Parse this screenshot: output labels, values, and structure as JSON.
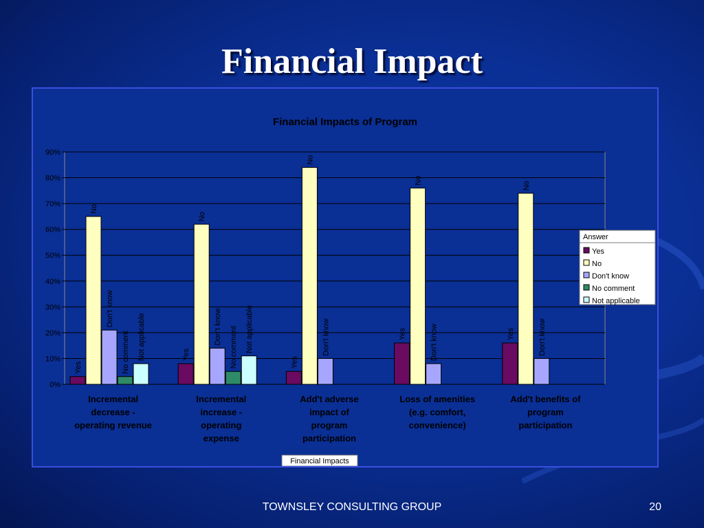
{
  "slide": {
    "title": "Financial Impact",
    "footer": "TOWNSLEY CONSULTING GROUP",
    "page_number": "20"
  },
  "colors": {
    "Yes": "#6a0a60",
    "No": "#ffffc0",
    "Don't know": "#a6a6ff",
    "No comment": "#2e8b67",
    "Not applicable": "#ccffff",
    "background": "#0a2f95",
    "axis_text": "#000000"
  },
  "chart_data": {
    "type": "bar",
    "title": "Financial Impacts of Program",
    "xlabel": "Financial Impacts",
    "ylabel": "",
    "ylim": [
      0,
      0.9
    ],
    "yticks": [
      "0%",
      "10%",
      "20%",
      "30%",
      "40%",
      "50%",
      "60%",
      "70%",
      "80%",
      "90%"
    ],
    "grid": true,
    "legend_title": "Answer",
    "legend_position": "right",
    "categories": [
      [
        "Incremental",
        "decrease -",
        "operating revenue"
      ],
      [
        "Incremental",
        "increase -",
        "operating",
        "expense"
      ],
      [
        "Add't adverse",
        "impact of",
        "program",
        "participation"
      ],
      [
        "Loss of amenities",
        "(e.g. comfort,",
        "convenience)"
      ],
      [
        "Add't benefits of",
        "program",
        "participation"
      ]
    ],
    "series": [
      {
        "name": "Yes",
        "values": [
          0.03,
          0.08,
          0.05,
          0.16,
          0.16
        ]
      },
      {
        "name": "No",
        "values": [
          0.65,
          0.62,
          0.84,
          0.76,
          0.74
        ]
      },
      {
        "name": "Don't know",
        "values": [
          0.21,
          0.14,
          0.1,
          0.08,
          0.1
        ]
      },
      {
        "name": "No comment",
        "values": [
          0.03,
          0.05,
          null,
          null,
          null
        ]
      },
      {
        "name": "Not applicable",
        "values": [
          0.08,
          0.11,
          null,
          null,
          null
        ]
      }
    ],
    "bar_labels": [
      [
        "Yes",
        "No",
        "Don't know",
        "No comment",
        "Not applicable"
      ],
      [
        "Yes",
        "No",
        "Don't know",
        "No comment",
        "Not applicable"
      ],
      [
        "Yes",
        "No",
        "Don't know",
        "",
        ""
      ],
      [
        "Yes",
        "No",
        "Don't know",
        "",
        ""
      ],
      [
        "Yes",
        "No",
        "Don't know",
        "",
        ""
      ]
    ]
  }
}
